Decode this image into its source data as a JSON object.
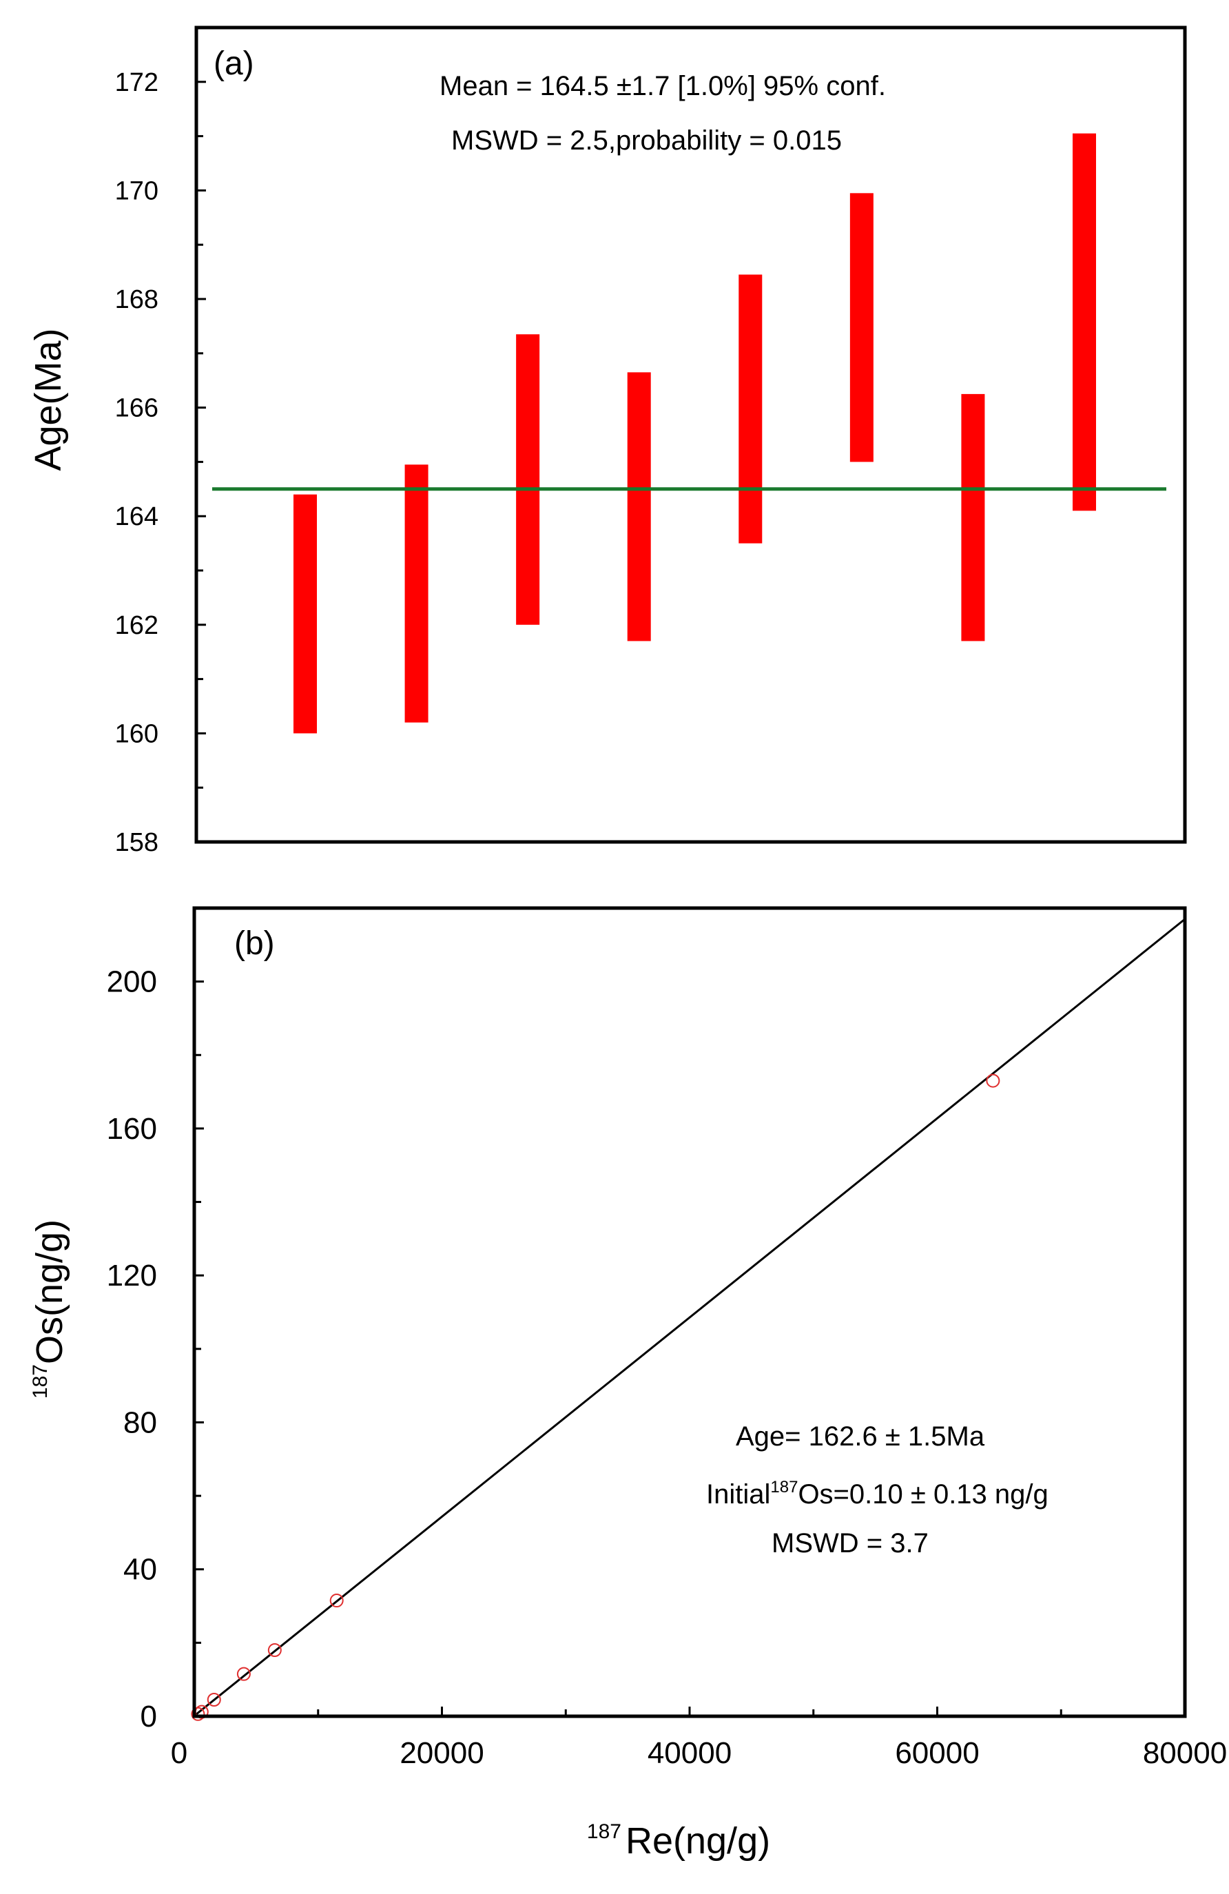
{
  "chart_data": [
    {
      "type": "bar",
      "subtype": "weighted-mean-error-bars",
      "panel_label": "(a)",
      "ylabel": "Age(Ma)",
      "xlabel": "",
      "ylim": [
        158,
        173
      ],
      "yticks": [
        158,
        160,
        162,
        164,
        166,
        168,
        170,
        172
      ],
      "grid": false,
      "bars": [
        {
          "low": 160.0,
          "high": 164.4
        },
        {
          "low": 160.2,
          "high": 164.95
        },
        {
          "low": 162.0,
          "high": 167.35
        },
        {
          "low": 161.7,
          "high": 166.65
        },
        {
          "low": 163.5,
          "high": 168.45
        },
        {
          "low": 165.0,
          "high": 169.95
        },
        {
          "low": 161.7,
          "high": 166.25
        },
        {
          "low": 164.1,
          "high": 171.05
        }
      ],
      "mean_line": 164.5,
      "annotations": [
        "Mean = 164.5 ±1.7  [1.0%]  95% conf.",
        "MSWD = 2.5,probability = 0.015"
      ],
      "colors": {
        "bars": "#ff0000",
        "mean_line": "#1a7a2e"
      }
    },
    {
      "type": "scatter",
      "subtype": "isochron",
      "panel_label": "(b)",
      "xlabel_sup": "187",
      "xlabel": "Re(ng/g)",
      "ylabel_sup": "187",
      "ylabel": "Os(ng/g)",
      "xlim": [
        0,
        80000
      ],
      "ylim": [
        0,
        220
      ],
      "xticks": [
        0,
        20000,
        40000,
        60000,
        80000
      ],
      "yticks": [
        0,
        40,
        80,
        120,
        160,
        200
      ],
      "grid": false,
      "points": [
        {
          "x": 300,
          "y": 0.6
        },
        {
          "x": 600,
          "y": 1.2
        },
        {
          "x": 1600,
          "y": 4.5
        },
        {
          "x": 4000,
          "y": 11.5
        },
        {
          "x": 6500,
          "y": 18
        },
        {
          "x": 11500,
          "y": 31.5
        },
        {
          "x": 64500,
          "y": 173
        }
      ],
      "fit_line": {
        "x": [
          0,
          80000
        ],
        "y": [
          0.1,
          217
        ]
      },
      "annotations": {
        "age": "Age= 162.6 ± 1.5Ma",
        "initial_prefix": "Initial",
        "initial_sup": "187",
        "initial_suffix": "Os=0.10 ± 0.13 ng/g",
        "mswd": "MSWD = 3.7"
      },
      "colors": {
        "points": "#e03030",
        "fit_line": "#000000"
      }
    }
  ]
}
